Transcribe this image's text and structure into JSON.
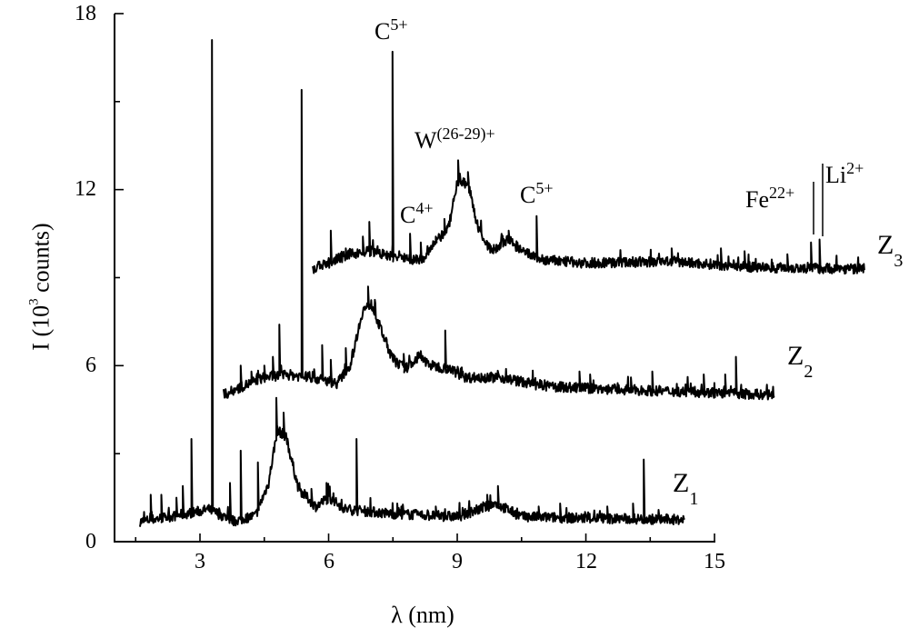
{
  "chart_data": {
    "type": "line",
    "title": "",
    "xlabel": "λ (nm)",
    "ylabel": "I (10^3 counts)",
    "ylabel_parts": {
      "pre": "I (10",
      "sup": "3",
      "post": " counts)"
    },
    "xlim": [
      1.0,
      15.0
    ],
    "ylim": [
      0,
      18
    ],
    "x_ticks": [
      3,
      6,
      9,
      12,
      15
    ],
    "x_minor_ticks": [
      1.5,
      4.5,
      7.5,
      10.5,
      13.5
    ],
    "y_ticks": [
      0,
      6,
      12,
      18
    ],
    "y_minor_ticks": [
      3,
      9,
      15
    ],
    "grid": false,
    "legend": null,
    "series": [
      {
        "name": "Z1",
        "label_main": "Z",
        "label_sub": "1",
        "x_range": [
          1.6,
          14.3
        ],
        "baseline": [
          [
            1.6,
            0.68
          ],
          [
            2.5,
            0.9
          ],
          [
            3.2,
            1.1
          ],
          [
            3.8,
            0.7
          ],
          [
            4.3,
            0.9
          ],
          [
            4.6,
            2.0
          ],
          [
            4.8,
            3.8
          ],
          [
            5.0,
            3.6
          ],
          [
            5.3,
            1.8
          ],
          [
            5.7,
            1.2
          ],
          [
            6.0,
            1.5
          ],
          [
            6.4,
            1.1
          ],
          [
            7.5,
            0.95
          ],
          [
            9.0,
            0.85
          ],
          [
            9.9,
            1.3
          ],
          [
            10.5,
            0.85
          ],
          [
            12.0,
            0.8
          ],
          [
            14.3,
            0.75
          ]
        ],
        "peaks": [
          [
            1.85,
            1.6
          ],
          [
            2.1,
            1.6
          ],
          [
            2.45,
            1.5
          ],
          [
            2.6,
            1.9
          ],
          [
            2.8,
            3.5
          ],
          [
            3.28,
            17.1
          ],
          [
            3.7,
            2.0
          ],
          [
            3.95,
            3.1
          ],
          [
            4.35,
            2.7
          ],
          [
            4.78,
            4.9
          ],
          [
            4.95,
            4.4
          ],
          [
            5.6,
            1.8
          ],
          [
            5.95,
            2.0
          ],
          [
            6.65,
            3.5
          ],
          [
            7.6,
            1.3
          ],
          [
            8.5,
            1.2
          ],
          [
            9.7,
            1.6
          ],
          [
            9.95,
            1.9
          ],
          [
            10.9,
            1.2
          ],
          [
            11.4,
            1.3
          ],
          [
            12.5,
            1.2
          ],
          [
            13.1,
            1.3
          ],
          [
            13.35,
            2.8
          ]
        ]
      },
      {
        "name": "Z2",
        "label_main": "Z",
        "label_sub": "2",
        "x_range": [
          3.55,
          16.4
        ],
        "baseline": [
          [
            3.55,
            5.0
          ],
          [
            4.0,
            5.3
          ],
          [
            4.5,
            5.6
          ],
          [
            5.0,
            5.7
          ],
          [
            5.6,
            5.6
          ],
          [
            6.2,
            5.4
          ],
          [
            6.5,
            6.0
          ],
          [
            6.8,
            7.9
          ],
          [
            7.0,
            8.1
          ],
          [
            7.2,
            7.3
          ],
          [
            7.5,
            6.2
          ],
          [
            7.8,
            5.9
          ],
          [
            8.1,
            6.3
          ],
          [
            8.4,
            6.0
          ],
          [
            8.8,
            5.9
          ],
          [
            9.2,
            5.6
          ],
          [
            10.0,
            5.6
          ],
          [
            11.0,
            5.3
          ],
          [
            12.5,
            5.2
          ],
          [
            14.5,
            5.1
          ],
          [
            16.4,
            5.0
          ]
        ],
        "peaks": [
          [
            3.95,
            6.0
          ],
          [
            4.2,
            5.8
          ],
          [
            4.5,
            6.0
          ],
          [
            4.7,
            6.3
          ],
          [
            4.85,
            7.4
          ],
          [
            5.37,
            15.4
          ],
          [
            5.85,
            6.7
          ],
          [
            6.05,
            6.2
          ],
          [
            6.4,
            6.6
          ],
          [
            6.92,
            8.7
          ],
          [
            7.75,
            6.4
          ],
          [
            8.15,
            6.5
          ],
          [
            8.72,
            7.2
          ],
          [
            11.85,
            5.8
          ],
          [
            12.1,
            5.7
          ],
          [
            13.05,
            5.6
          ],
          [
            13.55,
            5.8
          ],
          [
            14.75,
            5.7
          ],
          [
            15.25,
            5.7
          ],
          [
            15.5,
            6.3
          ]
        ]
      },
      {
        "name": "Z3",
        "label_main": "Z",
        "label_sub": "3",
        "x_range": [
          5.63,
          18.5
        ],
        "baseline": [
          [
            5.63,
            9.3
          ],
          [
            6.0,
            9.5
          ],
          [
            6.5,
            9.8
          ],
          [
            7.0,
            9.9
          ],
          [
            7.5,
            9.7
          ],
          [
            8.2,
            9.6
          ],
          [
            8.5,
            10.2
          ],
          [
            8.8,
            10.7
          ],
          [
            9.0,
            12.3
          ],
          [
            9.25,
            12.2
          ],
          [
            9.5,
            10.6
          ],
          [
            9.8,
            9.9
          ],
          [
            10.2,
            10.3
          ],
          [
            10.5,
            9.9
          ],
          [
            11.0,
            9.6
          ],
          [
            12.0,
            9.5
          ],
          [
            14.0,
            9.55
          ],
          [
            16.0,
            9.35
          ],
          [
            18.5,
            9.3
          ]
        ],
        "peaks": [
          [
            6.05,
            10.6
          ],
          [
            6.4,
            10.0
          ],
          [
            6.8,
            10.4
          ],
          [
            6.95,
            10.9
          ],
          [
            7.49,
            16.7
          ],
          [
            7.9,
            10.5
          ],
          [
            8.15,
            10.2
          ],
          [
            8.5,
            10.4
          ],
          [
            8.7,
            11.0
          ],
          [
            9.02,
            13.0
          ],
          [
            9.25,
            12.6
          ],
          [
            10.2,
            10.6
          ],
          [
            10.85,
            11.1
          ],
          [
            14.0,
            10.0
          ],
          [
            15.15,
            10.0
          ],
          [
            15.7,
            9.9
          ],
          [
            16.7,
            9.8
          ],
          [
            17.25,
            10.2
          ],
          [
            17.45,
            10.3
          ]
        ]
      }
    ],
    "annotations": [
      {
        "text": "C",
        "sup": "5+",
        "x": 7.49,
        "note": "above tall Z3 peak"
      },
      {
        "text": "W",
        "sup": "(26-29)+",
        "x": 9.0,
        "note": "above broad Z3 peak"
      },
      {
        "text": "C",
        "sup": "4+",
        "x": 7.9,
        "note": "Z3 line"
      },
      {
        "text": "C",
        "sup": "5+",
        "x": 10.85,
        "note": "Z3 line"
      },
      {
        "text": "Fe",
        "sup": "22+",
        "x": 17.25,
        "note": "marker line"
      },
      {
        "text": "Li",
        "sup": "2+",
        "x": 17.45,
        "note": "marker line"
      }
    ]
  },
  "axis": {
    "x_title": "λ (nm)",
    "y_title_pre": "I (10",
    "y_title_sup": "3",
    "y_title_post": " counts)",
    "x_tick_labels": [
      "3",
      "6",
      "9",
      "12",
      "15"
    ],
    "y_tick_labels": [
      "0",
      "6",
      "12",
      "18"
    ]
  },
  "labels": {
    "z1_main": "Z",
    "z1_sub": "1",
    "z2_main": "Z",
    "z2_sub": "2",
    "z3_main": "Z",
    "z3_sub": "3",
    "c5_a": "C",
    "c5_a_sup": "5+",
    "w": "W",
    "w_sup": "(26-29)+",
    "c4": "C",
    "c4_sup": "4+",
    "c5_b": "C",
    "c5_b_sup": "5+",
    "fe": "Fe",
    "fe_sup": "22+",
    "li": "Li",
    "li_sup": "2+"
  }
}
